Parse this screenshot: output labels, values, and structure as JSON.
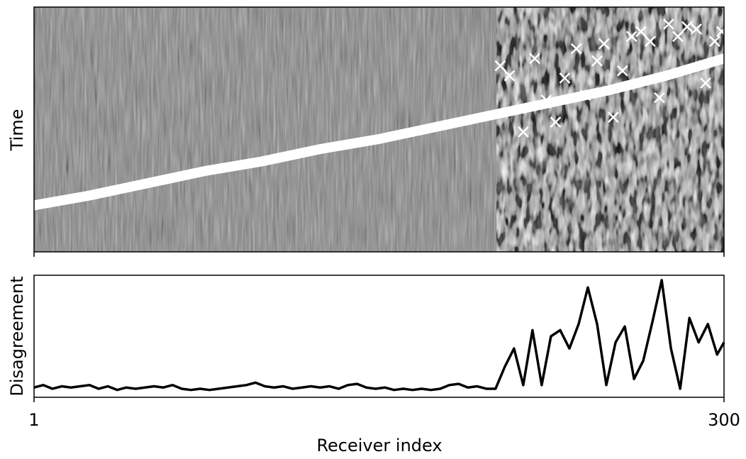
{
  "chart_data": [
    {
      "type": "scatter",
      "ylabel": "Time",
      "xlim": [
        1,
        300
      ],
      "ylim": [
        0,
        1
      ],
      "xticks": [
        1,
        300
      ],
      "series": [
        {
          "name": "picks",
          "color": "#ffffff",
          "x": [
            1,
            25,
            50,
            75,
            100,
            125,
            150,
            175,
            200,
            225,
            250,
            275,
            300
          ],
          "values": [
            0.19,
            0.23,
            0.28,
            0.33,
            0.37,
            0.42,
            0.46,
            0.51,
            0.56,
            0.61,
            0.66,
            0.72,
            0.79
          ]
        },
        {
          "name": "outliers",
          "color": "#ffffff",
          "x": [
            203,
            207,
            213,
            218,
            223,
            227,
            231,
            236,
            240,
            245,
            248,
            252,
            256,
            260,
            264,
            268,
            272,
            276,
            280,
            284,
            288,
            292,
            296,
            299
          ],
          "values": [
            0.76,
            0.72,
            0.49,
            0.79,
            0.62,
            0.53,
            0.71,
            0.83,
            0.64,
            0.78,
            0.85,
            0.55,
            0.74,
            0.88,
            0.9,
            0.86,
            0.63,
            0.93,
            0.88,
            0.92,
            0.91,
            0.69,
            0.86,
            0.9
          ]
        }
      ]
    },
    {
      "type": "line",
      "xlabel": "Receiver index",
      "ylabel": "Disagreement",
      "xlim": [
        1,
        300
      ],
      "ylim": [
        0,
        1
      ],
      "xticks": [
        1,
        300
      ],
      "series": [
        {
          "name": "disagreement",
          "color": "#000000",
          "x": [
            1,
            5,
            9,
            13,
            17,
            21,
            25,
            29,
            33,
            37,
            41,
            45,
            49,
            53,
            57,
            61,
            65,
            69,
            73,
            77,
            81,
            85,
            89,
            93,
            97,
            101,
            105,
            109,
            113,
            117,
            121,
            125,
            129,
            133,
            137,
            141,
            145,
            149,
            153,
            157,
            161,
            165,
            169,
            173,
            177,
            181,
            185,
            189,
            193,
            197,
            201,
            205,
            209,
            213,
            217,
            221,
            225,
            229,
            233,
            237,
            241,
            245,
            249,
            253,
            257,
            261,
            265,
            269,
            273,
            277,
            281,
            285,
            289,
            293,
            297,
            300
          ],
          "values": [
            0.08,
            0.1,
            0.07,
            0.09,
            0.08,
            0.09,
            0.1,
            0.07,
            0.09,
            0.06,
            0.08,
            0.07,
            0.08,
            0.09,
            0.08,
            0.1,
            0.07,
            0.06,
            0.07,
            0.06,
            0.07,
            0.08,
            0.09,
            0.1,
            0.12,
            0.09,
            0.08,
            0.09,
            0.07,
            0.08,
            0.09,
            0.08,
            0.09,
            0.07,
            0.1,
            0.11,
            0.08,
            0.07,
            0.08,
            0.06,
            0.07,
            0.06,
            0.07,
            0.06,
            0.07,
            0.1,
            0.11,
            0.08,
            0.09,
            0.07,
            0.07,
            0.25,
            0.4,
            0.1,
            0.55,
            0.1,
            0.5,
            0.55,
            0.4,
            0.6,
            0.9,
            0.6,
            0.1,
            0.45,
            0.58,
            0.15,
            0.3,
            0.62,
            0.96,
            0.4,
            0.07,
            0.65,
            0.45,
            0.6,
            0.35,
            0.45
          ]
        }
      ]
    }
  ]
}
